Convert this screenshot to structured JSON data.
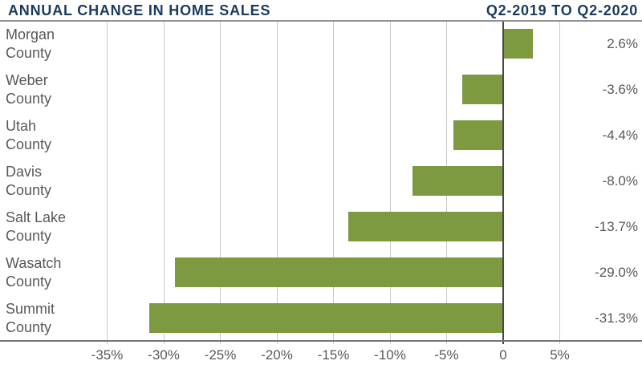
{
  "header": {
    "title": "ANNUAL CHANGE IN HOME SALES",
    "period": "Q2-2019 TO Q2-2020"
  },
  "colors": {
    "bar": "#7d9a41",
    "navy": "#1b3b5e",
    "text_gray": "#58595b",
    "gridline": "#c9c9c9",
    "zero_line": "#45484d",
    "axis_line": "#757575",
    "top_border": "#919191"
  },
  "chart_data": {
    "type": "bar",
    "orientation": "horizontal",
    "title": "ANNUAL CHANGE IN HOME SALES",
    "subtitle": "Q2-2019 TO Q2-2020",
    "categories": [
      "Morgan County",
      "Weber County",
      "Utah County",
      "Davis County",
      "Salt Lake County",
      "Wasatch County",
      "Summit County"
    ],
    "category_display": [
      "Morgan\nCounty",
      "Weber\nCounty",
      "Utah\nCounty",
      "Davis\nCounty",
      "Salt Lake\nCounty",
      "Wasatch\nCounty",
      "Summit\nCounty"
    ],
    "values": [
      2.6,
      -3.6,
      -4.4,
      -8.0,
      -13.7,
      -29.0,
      -31.3
    ],
    "value_labels": [
      "2.6%",
      "-3.6%",
      "-4.4%",
      "-8.0%",
      "-13.7%",
      "-29.0%",
      "-31.3%"
    ],
    "x_ticks": [
      {
        "label": "-35%",
        "value": -35
      },
      {
        "label": "-30%",
        "value": -30
      },
      {
        "label": "-25%",
        "value": -25
      },
      {
        "label": "-20%",
        "value": -20
      },
      {
        "label": "-15%",
        "value": -15
      },
      {
        "label": "-10%",
        "value": -10
      },
      {
        "label": "-5%",
        "value": -5
      },
      {
        "label": "0",
        "value": 0
      },
      {
        "label": "5%",
        "value": 5
      }
    ],
    "xlim": [
      -44.5,
      12.3
    ],
    "unit": "%",
    "grid": true,
    "legend": "none"
  }
}
